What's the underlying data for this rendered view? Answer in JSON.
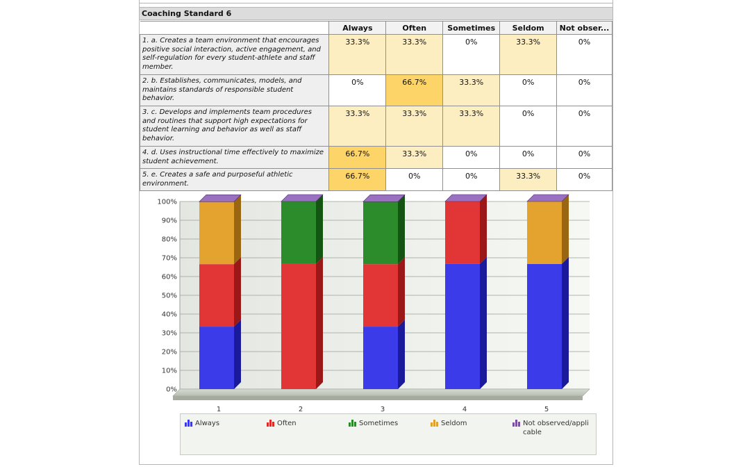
{
  "section_title": "Coaching Standard 6",
  "columns": [
    "Always",
    "Often",
    "Sometimes",
    "Seldom",
    "Not obser..."
  ],
  "rows": [
    {
      "text": "1. a. Creates a team environment that encourages positive social interaction, active engagement, and self-regulation for every student-athlete and staff member.",
      "cells": [
        "33.3%",
        "33.3%",
        "0%",
        "33.3%",
        "0%"
      ]
    },
    {
      "text": "2. b. Establishes, communicates, models, and maintains standards of responsible student behavior.",
      "cells": [
        "0%",
        "66.7%",
        "33.3%",
        "0%",
        "0%"
      ]
    },
    {
      "text": "3. c. Develops and implements team procedures and routines that support high expectations for student learning and behavior as well as staff behavior.",
      "cells": [
        "33.3%",
        "33.3%",
        "33.3%",
        "0%",
        "0%"
      ]
    },
    {
      "text": "4. d. Uses instructional time effectively to maximize student achievement.",
      "cells": [
        "66.7%",
        "33.3%",
        "0%",
        "0%",
        "0%"
      ]
    },
    {
      "text": "5. e. Creates a safe and purposeful athletic environment.",
      "cells": [
        "66.7%",
        "0%",
        "0%",
        "33.3%",
        "0%"
      ]
    }
  ],
  "colors": {
    "cell_light": "#fdeec2",
    "cell_strong": "#fdd468",
    "always": "#3a3ae6",
    "often": "#e02a2a",
    "sometimes": "#2a8a2a",
    "seldom": "#e0a030",
    "not_observed": "#7a4fa0"
  },
  "chart_data": {
    "type": "bar",
    "stacked": true,
    "categories": [
      "1",
      "2",
      "3",
      "4",
      "5"
    ],
    "series": [
      {
        "name": "Always",
        "values": [
          33.3,
          0,
          33.3,
          66.7,
          66.7
        ]
      },
      {
        "name": "Often",
        "values": [
          33.3,
          66.7,
          33.3,
          33.3,
          0
        ]
      },
      {
        "name": "Sometimes",
        "values": [
          0,
          33.3,
          33.3,
          0,
          0
        ]
      },
      {
        "name": "Seldom",
        "values": [
          33.3,
          0,
          0,
          0,
          33.3
        ]
      },
      {
        "name": "Not observed/applicable",
        "values": [
          0,
          0,
          0,
          0,
          0
        ]
      }
    ],
    "ylim": [
      0,
      100
    ],
    "yticks": [
      "0%",
      "10%",
      "20%",
      "30%",
      "40%",
      "50%",
      "60%",
      "70%",
      "80%",
      "90%",
      "100%"
    ],
    "grid": true,
    "legend_position": "bottom",
    "legend": [
      "Always",
      "Often",
      "Sometimes",
      "Seldom",
      "Not observed/applicable"
    ]
  }
}
